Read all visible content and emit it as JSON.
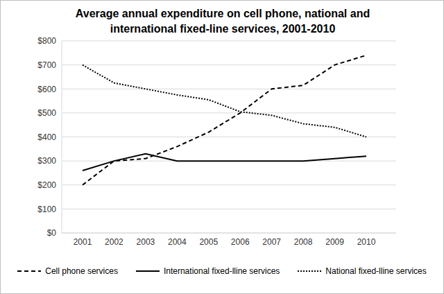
{
  "chart_data": {
    "type": "line",
    "title": "Average annual expenditure on cell phone, national and international fixed-line services, 2001-2010",
    "categories": [
      "2001",
      "2002",
      "2003",
      "2004",
      "2005",
      "2006",
      "2007",
      "2008",
      "2009",
      "2010"
    ],
    "series": [
      {
        "name": "Cell phone services",
        "color": "#000000",
        "line_style": "dashed",
        "values": [
          200,
          300,
          310,
          360,
          420,
          500,
          600,
          615,
          700,
          740
        ]
      },
      {
        "name": "International fixed-lline services",
        "color": "#000000",
        "line_style": "solid",
        "values": [
          260,
          300,
          330,
          300,
          300,
          300,
          300,
          300,
          310,
          320
        ]
      },
      {
        "name": "National fixed-lline services",
        "color": "#000000",
        "line_style": "dotted",
        "values": [
          700,
          625,
          600,
          575,
          555,
          505,
          490,
          455,
          440,
          400
        ]
      }
    ],
    "ylim": [
      0,
      800
    ],
    "yticks": [
      {
        "value": 0,
        "label": "$0"
      },
      {
        "value": 100,
        "label": "$100"
      },
      {
        "value": 200,
        "label": "$200"
      },
      {
        "value": 300,
        "label": "$300"
      },
      {
        "value": 400,
        "label": "$400"
      },
      {
        "value": 500,
        "label": "$500"
      },
      {
        "value": 600,
        "label": "$600"
      },
      {
        "value": 700,
        "label": "$700"
      },
      {
        "value": 800,
        "label": "$800"
      }
    ],
    "grid": true,
    "legend": "bottom"
  }
}
